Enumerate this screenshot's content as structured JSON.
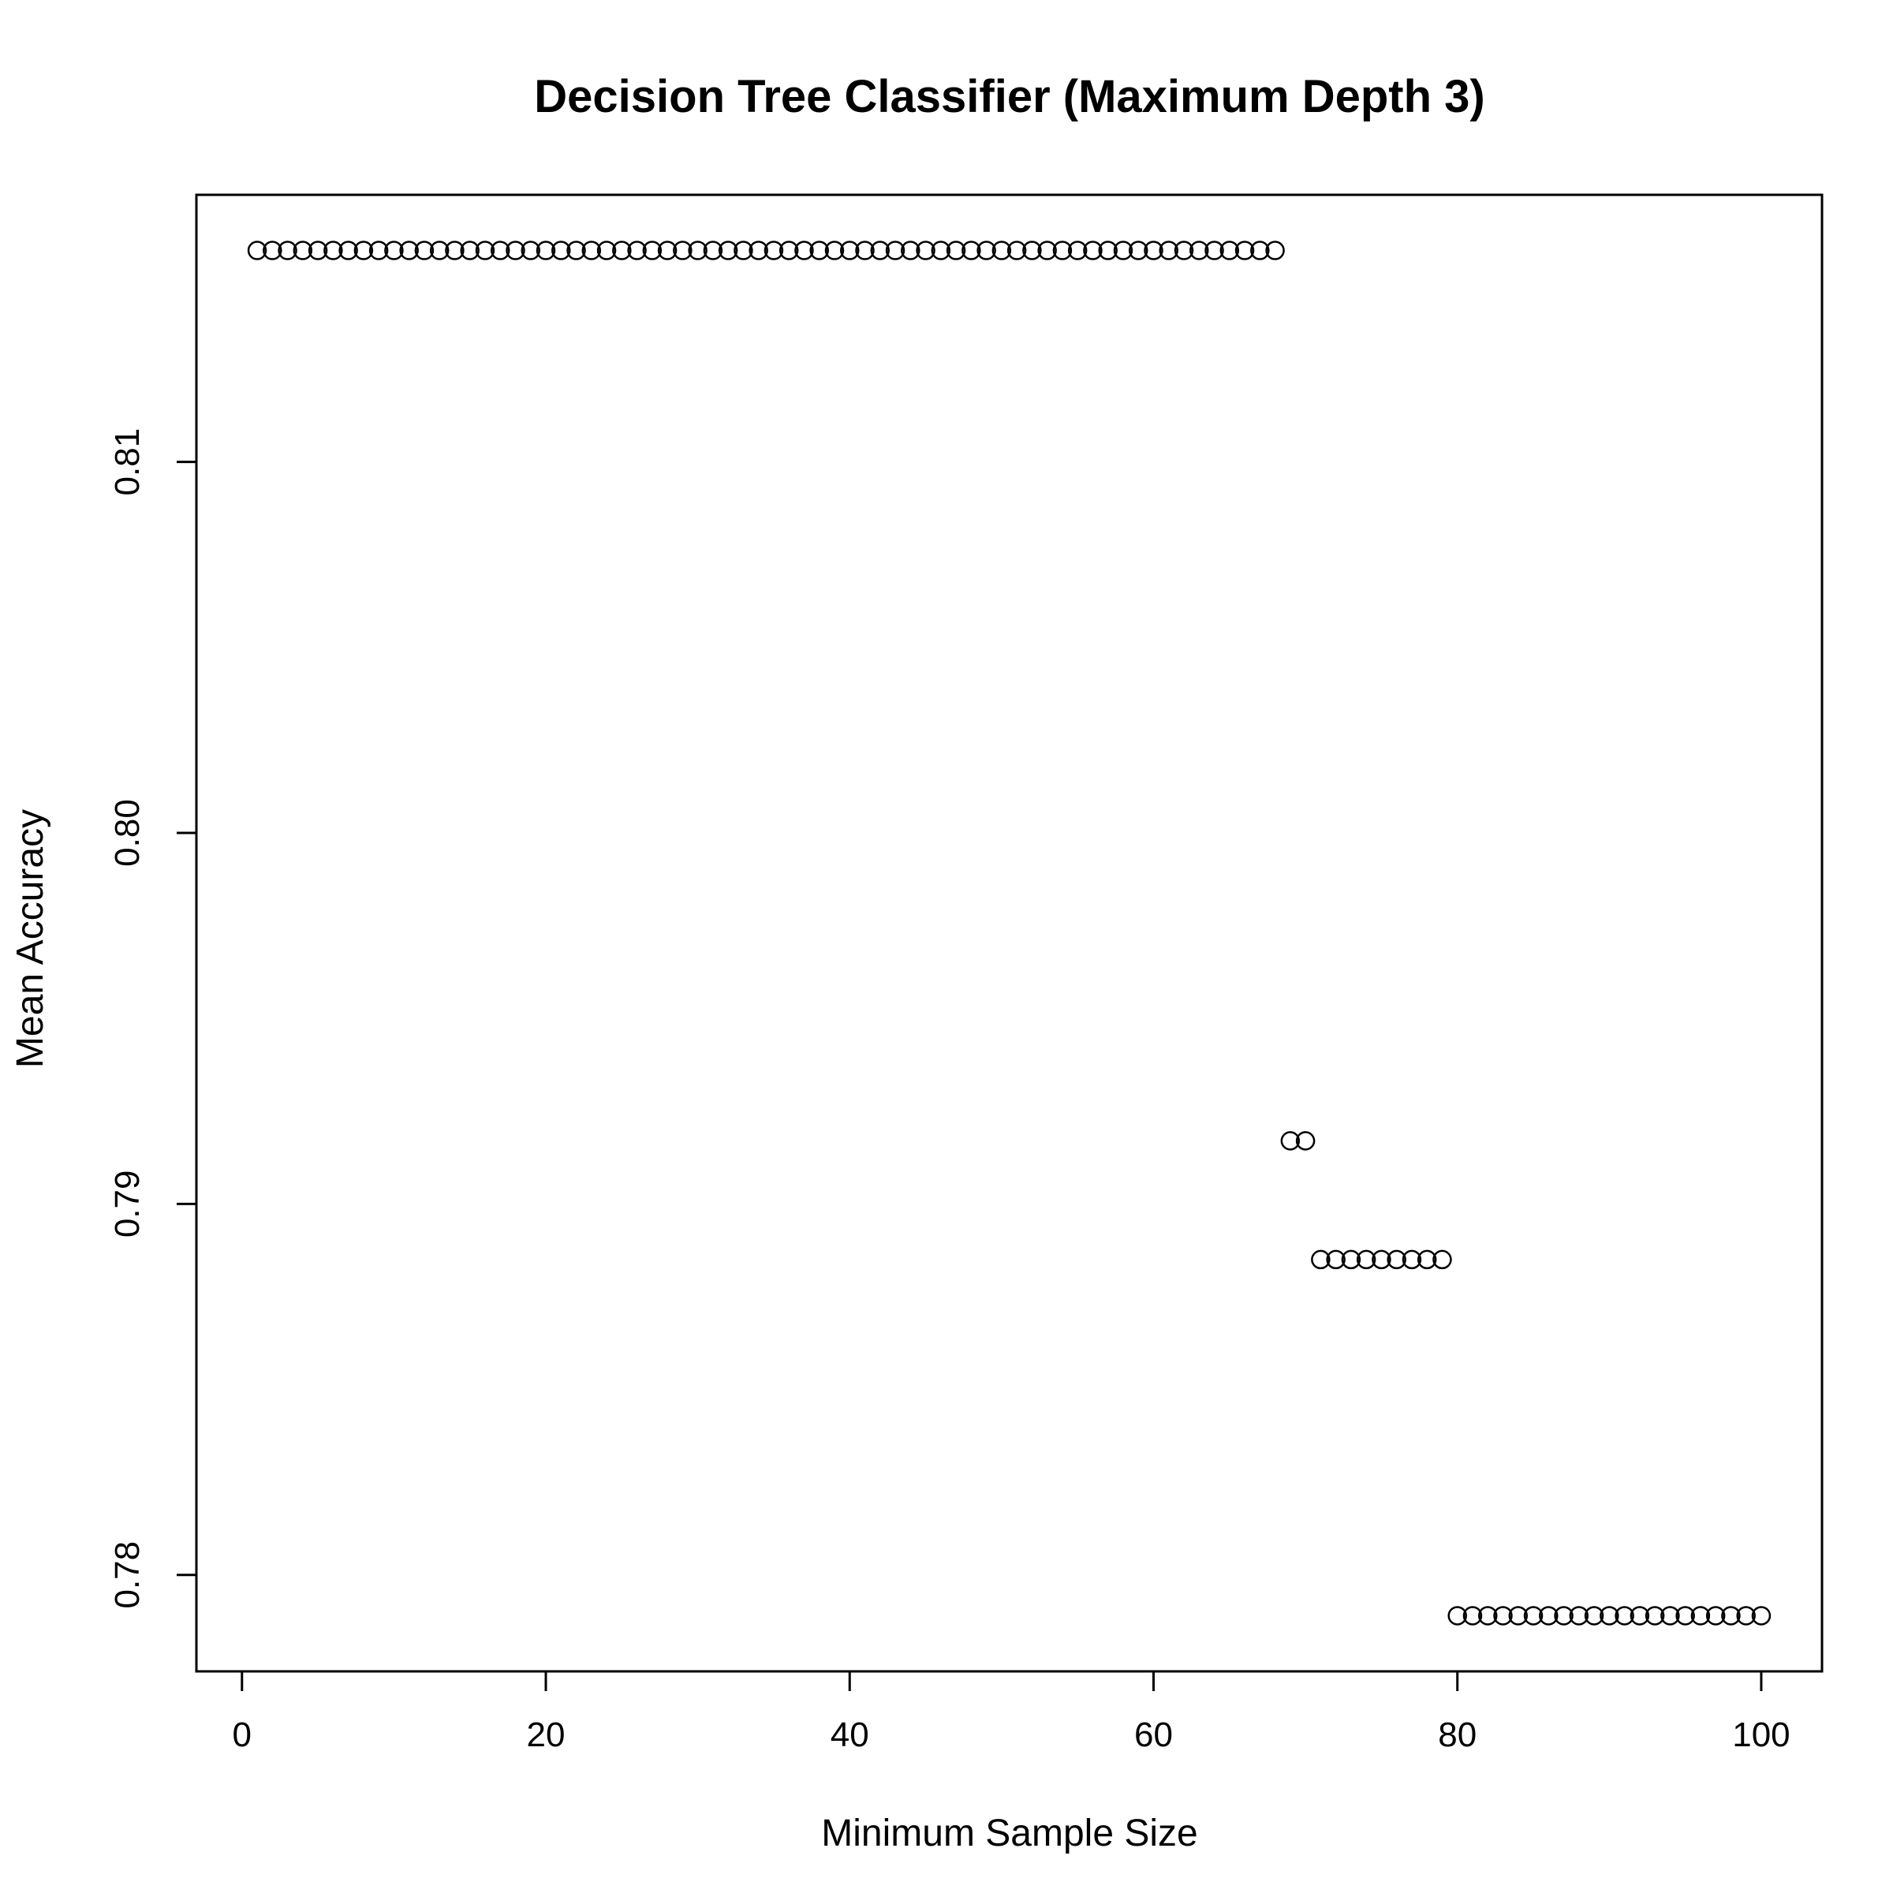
{
  "chart_data": {
    "type": "scatter",
    "title": "Decision Tree Classifier (Maximum Depth 3)",
    "xlabel": "Minimum Sample Size",
    "ylabel": "Mean Accuracy",
    "xlim": [
      -3,
      104
    ],
    "ylim": [
      0.7774,
      0.8172
    ],
    "x_ticks": [
      0,
      20,
      40,
      60,
      80,
      100
    ],
    "x_tick_labels": [
      "0",
      "20",
      "40",
      "60",
      "80",
      "100"
    ],
    "y_ticks": [
      0.78,
      0.79,
      0.8,
      0.81
    ],
    "y_tick_labels": [
      "0.78",
      "0.79",
      "0.80",
      "0.81"
    ],
    "grid": false,
    "marker": "open-circle",
    "series": [
      {
        "groups": [
          {
            "x_from": 1,
            "x_to": 68,
            "y": 0.8157
          },
          {
            "x_from": 69,
            "x_to": 70,
            "y": 0.7917
          },
          {
            "x_from": 71,
            "x_to": 79,
            "y": 0.7885
          },
          {
            "x_from": 80,
            "x_to": 100,
            "y": 0.7789
          }
        ]
      }
    ]
  }
}
